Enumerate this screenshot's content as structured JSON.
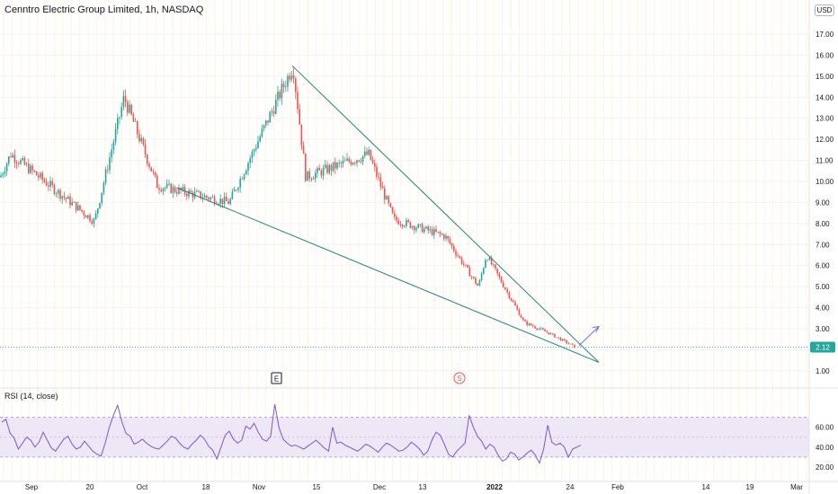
{
  "header": {
    "title": "Cenntro Electric Group Limited, 1h, NASDAQ",
    "currency": "USD"
  },
  "rsi_panel": {
    "title": "RSI (14, close)"
  },
  "markers": {
    "earnings": "E",
    "split": "S"
  },
  "colors": {
    "trendline": "#26837a",
    "arrow": "#7b68ee",
    "bull": "#26a69a",
    "bear": "#ef5350",
    "rsi_line": "#7e57c2",
    "rsi_band": "#ede7f6",
    "price_badge": "#26a69a",
    "vgrid": "#fff3d9",
    "hgrid": "#f1f3f6"
  },
  "chart_data": [
    {
      "type": "candlestick",
      "price_axis": {
        "ticks": [
          "1.00",
          "2.00",
          "3.00",
          "4.00",
          "5.00",
          "6.00",
          "7.00",
          "8.00",
          "9.00",
          "10.00",
          "11.00",
          "12.00",
          "13.00",
          "14.00",
          "15.00",
          "16.00",
          "17.00"
        ],
        "range": [
          0.35,
          17.6
        ]
      },
      "last_price": "2.12",
      "time_axis": {
        "labels": [
          "Sep",
          "20",
          "Oct",
          "18",
          "Nov",
          "15",
          "Dec",
          "13",
          "2022",
          "24",
          "Feb",
          "14",
          "19",
          "Mar"
        ],
        "bold": [
          "2022"
        ]
      },
      "series_key_points": [
        {
          "t": "start",
          "price": 10.2
        },
        {
          "t": "early Sep",
          "price": 11.3
        },
        {
          "t": "late Sep low",
          "price": 8.1
        },
        {
          "t": "~Oct 1",
          "price": 14.0
        },
        {
          "t": "mid Oct",
          "price": 9.8
        },
        {
          "t": "late Oct",
          "price": 9.0
        },
        {
          "t": "~Nov 8 peak",
          "price": 15.5
        },
        {
          "t": "mid Nov",
          "price": 10.2
        },
        {
          "t": "~Nov 25",
          "price": 11.3
        },
        {
          "t": "~Dec 1",
          "price": 8.2
        },
        {
          "t": "~Dec 20",
          "price": 7.4
        },
        {
          "t": "~Dec 24",
          "price": 5.0
        },
        {
          "t": "~Dec 29",
          "price": 6.5
        },
        {
          "t": "~Jan 10",
          "price": 3.3
        },
        {
          "t": "~Jan 20",
          "price": 2.8
        },
        {
          "t": "~Jan 25",
          "price": 2.12
        }
      ],
      "drawings": {
        "wedge_upper": [
          {
            "t": "Nov 8",
            "price": 15.5
          },
          {
            "t": "Jan 27",
            "price": 1.4
          }
        ],
        "wedge_lower": [
          {
            "t": "Oct 12",
            "price": 9.7
          },
          {
            "t": "Jan 27",
            "price": 1.4
          }
        ],
        "breakout_arrow": [
          {
            "t": "Jan 25",
            "price": 2.2
          },
          {
            "t": "Jan 27",
            "price": 3.1
          }
        ]
      }
    },
    {
      "type": "line",
      "name": "RSI (14, close)",
      "y_axis": {
        "ticks": [
          "20.00",
          "40.00",
          "60.00"
        ],
        "range": [
          11,
          84
        ]
      },
      "band": [
        30,
        70
      ],
      "midline": 50,
      "values": [
        65,
        68,
        54,
        49,
        38,
        44,
        50,
        47,
        40,
        45,
        55,
        47,
        39,
        36,
        42,
        48,
        51,
        43,
        38,
        40,
        46,
        41,
        36,
        33,
        31,
        44,
        60,
        72,
        82,
        66,
        54,
        51,
        43,
        45,
        48,
        44,
        41,
        39,
        38,
        42,
        46,
        51,
        49,
        44,
        40,
        38,
        43,
        47,
        52,
        48,
        41,
        37,
        28,
        40,
        52,
        56,
        48,
        44,
        47,
        61,
        58,
        64,
        55,
        48,
        46,
        51,
        83,
        60,
        48,
        44,
        41,
        42,
        40,
        38,
        41,
        44,
        47,
        43,
        39,
        36,
        60,
        44,
        45,
        42,
        40,
        38,
        36,
        39,
        43,
        41,
        38,
        35,
        40,
        44,
        42,
        39,
        36,
        37,
        40,
        45,
        42,
        38,
        32,
        36,
        47,
        55,
        52,
        43,
        33,
        30,
        36,
        40,
        44,
        72,
        60,
        51,
        46,
        38,
        43,
        40,
        32,
        26,
        28,
        35,
        33,
        27,
        30,
        34,
        37,
        32,
        24,
        38,
        62,
        45,
        42,
        44,
        40,
        30,
        38,
        40,
        42
      ]
    }
  ]
}
